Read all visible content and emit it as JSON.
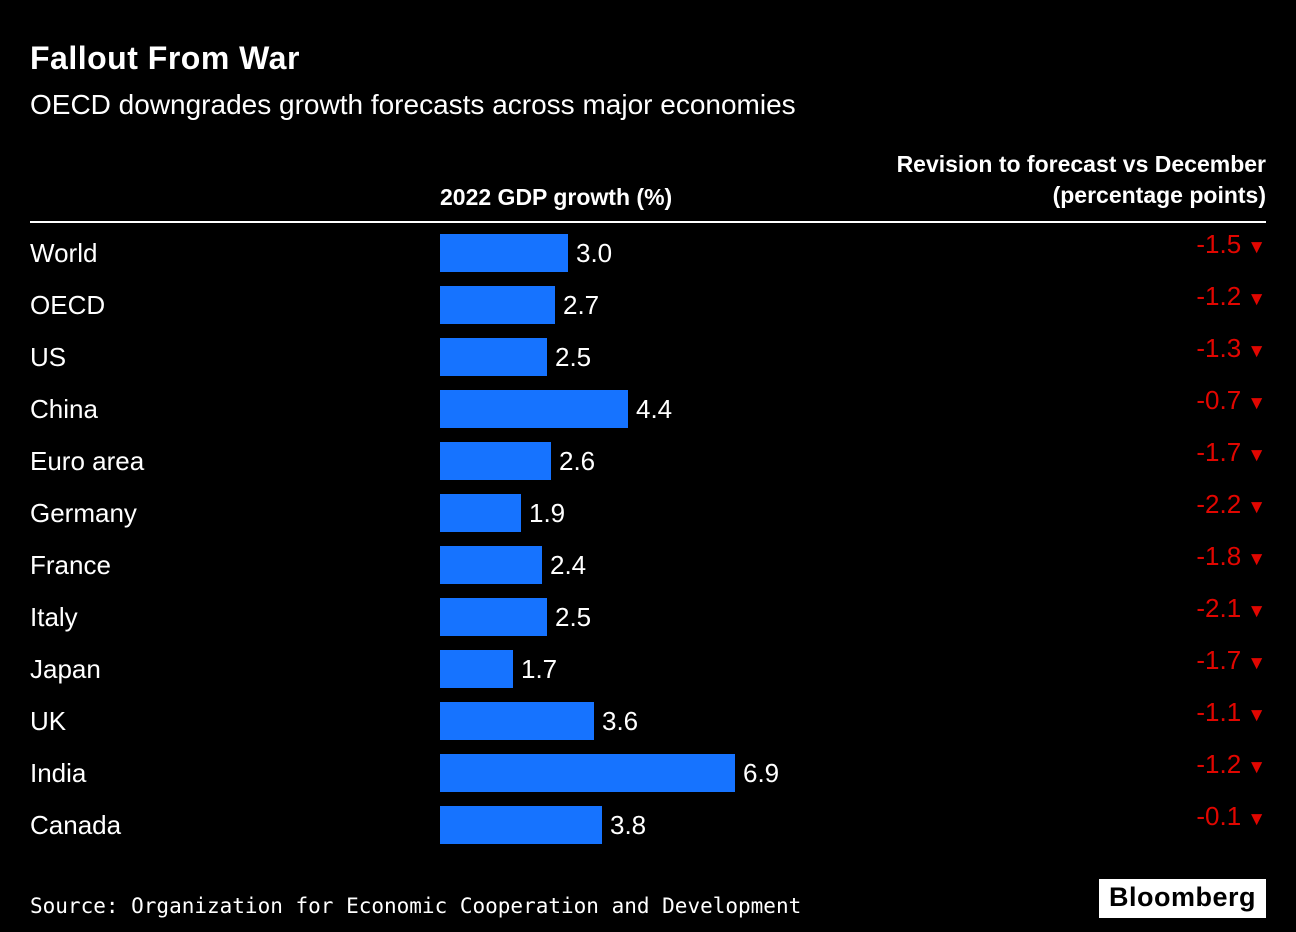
{
  "header": {
    "title": "Fallout From War",
    "subtitle": "OECD downgrades growth forecasts across major economies"
  },
  "columns": {
    "gdp_header": "2022 GDP growth (%)",
    "revision_header_line1": "Revision to forecast vs December",
    "revision_header_line2": "(percentage points)"
  },
  "chart_data": {
    "type": "bar",
    "orientation": "horizontal",
    "title": "Fallout From War",
    "subtitle": "OECD downgrades growth forecasts across major economies",
    "categories": [
      "World",
      "OECD",
      "US",
      "China",
      "Euro area",
      "Germany",
      "France",
      "Italy",
      "Japan",
      "UK",
      "India",
      "Canada"
    ],
    "series": [
      {
        "name": "2022 GDP growth (%)",
        "values": [
          3.0,
          2.7,
          2.5,
          4.4,
          2.6,
          1.9,
          2.4,
          2.5,
          1.7,
          3.6,
          6.9,
          3.8
        ]
      },
      {
        "name": "Revision to forecast vs December (percentage points)",
        "values": [
          -1.5,
          -1.2,
          -1.3,
          -0.7,
          -1.7,
          -2.2,
          -1.8,
          -2.1,
          -1.7,
          -1.1,
          -1.2,
          -0.1
        ]
      }
    ],
    "rows": [
      {
        "label": "World",
        "gdp": 3.0,
        "gdp_label": "3.0",
        "revision": -1.5,
        "revision_label": "-1.5"
      },
      {
        "label": "OECD",
        "gdp": 2.7,
        "gdp_label": "2.7",
        "revision": -1.2,
        "revision_label": "-1.2"
      },
      {
        "label": "US",
        "gdp": 2.5,
        "gdp_label": "2.5",
        "revision": -1.3,
        "revision_label": "-1.3"
      },
      {
        "label": "China",
        "gdp": 4.4,
        "gdp_label": "4.4",
        "revision": -0.7,
        "revision_label": "-0.7"
      },
      {
        "label": "Euro area",
        "gdp": 2.6,
        "gdp_label": "2.6",
        "revision": -1.7,
        "revision_label": "-1.7"
      },
      {
        "label": "Germany",
        "gdp": 1.9,
        "gdp_label": "1.9",
        "revision": -2.2,
        "revision_label": "-2.2"
      },
      {
        "label": "France",
        "gdp": 2.4,
        "gdp_label": "2.4",
        "revision": -1.8,
        "revision_label": "-1.8"
      },
      {
        "label": "Italy",
        "gdp": 2.5,
        "gdp_label": "2.5",
        "revision": -2.1,
        "revision_label": "-2.1"
      },
      {
        "label": "Japan",
        "gdp": 1.7,
        "gdp_label": "1.7",
        "revision": -1.7,
        "revision_label": "-1.7"
      },
      {
        "label": "UK",
        "gdp": 3.6,
        "gdp_label": "3.6",
        "revision": -1.1,
        "revision_label": "-1.1"
      },
      {
        "label": "India",
        "gdp": 6.9,
        "gdp_label": "6.9",
        "revision": -1.2,
        "revision_label": "-1.2"
      },
      {
        "label": "Canada",
        "gdp": 3.8,
        "gdp_label": "3.8",
        "revision": -0.1,
        "revision_label": "-0.1"
      }
    ],
    "xlim": [
      0,
      7.5
    ],
    "grid": false,
    "legend_position": "column-headers",
    "bar_color": "#1673ff",
    "revision_color": "#e10600",
    "background_color": "#000000"
  },
  "icons": {
    "down_triangle": "▼"
  },
  "footer": {
    "source": "Source: Organization for Economic Cooperation and Development",
    "logo": "Bloomberg"
  }
}
